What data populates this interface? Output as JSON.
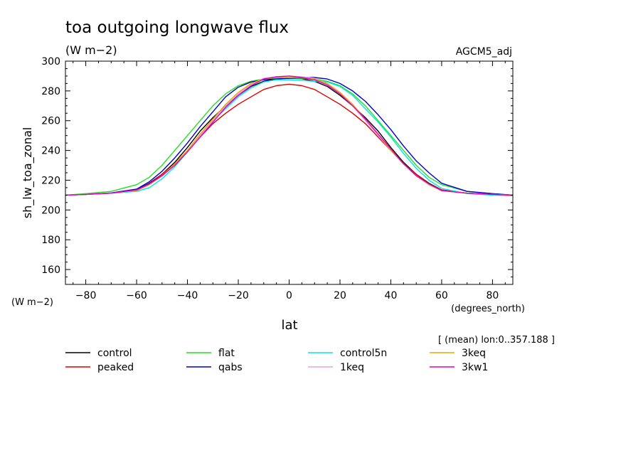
{
  "chart_data": {
    "type": "line",
    "title": "toa outgoing longwave flux",
    "units_label": "(W m−2)",
    "run_label": "AGCM5_adj",
    "ylabel": "sh_lw_toa_zonal",
    "y_units": "(W m−2)",
    "xlabel": "lat",
    "x_units": "(degrees_north)",
    "mean_note": "[ (mean) lon:0..357.188 ]",
    "xlim": [
      -88,
      88
    ],
    "ylim": [
      150,
      300
    ],
    "xticks": [
      -80,
      -60,
      -40,
      -20,
      0,
      20,
      40,
      60,
      80
    ],
    "xtick_labels": [
      "−80",
      "−60",
      "−40",
      "−20",
      "0",
      "20",
      "40",
      "60",
      "80"
    ],
    "yticks": [
      160,
      180,
      200,
      220,
      240,
      260,
      280,
      300
    ],
    "ytick_labels": [
      "160",
      "180",
      "200",
      "220",
      "240",
      "260",
      "280",
      "300"
    ],
    "grid": false,
    "legend_position": "bottom",
    "x": [
      -88,
      -80,
      -70,
      -60,
      -55,
      -50,
      -45,
      -40,
      -35,
      -30,
      -25,
      -20,
      -15,
      -10,
      -5,
      0,
      5,
      10,
      15,
      20,
      25,
      30,
      35,
      40,
      45,
      50,
      55,
      60,
      70,
      80,
      88
    ],
    "series": [
      {
        "name": "control",
        "color": "#000000",
        "values": [
          210,
          210.5,
          211.3,
          213.5,
          218,
          224,
          232,
          242,
          253,
          262,
          270,
          277,
          283,
          286.5,
          288.2,
          288.5,
          288.2,
          286.5,
          283,
          277,
          270,
          262,
          253,
          242,
          232,
          224,
          218,
          213.5,
          211.3,
          210.5,
          210
        ]
      },
      {
        "name": "peaked",
        "color": "#e00000",
        "values": [
          210,
          210.5,
          211.3,
          213.5,
          217.5,
          224,
          231,
          240,
          249,
          258,
          265,
          271,
          276,
          281,
          283.5,
          284.5,
          283.5,
          281,
          276,
          271,
          265,
          258,
          249,
          240,
          231,
          224,
          217.5,
          213.5,
          211.3,
          210.5,
          210
        ]
      },
      {
        "name": "flat",
        "color": "#22e022",
        "values": [
          210,
          211,
          212.5,
          217,
          222,
          230,
          240,
          250,
          260,
          270,
          278,
          283.5,
          286.5,
          288,
          288.5,
          288.5,
          288.5,
          288,
          286.5,
          283.5,
          278,
          270,
          260,
          250,
          240,
          230,
          222,
          217,
          212.5,
          211,
          210
        ]
      },
      {
        "name": "qabs",
        "color": "#0000c8",
        "values": [
          210,
          210.5,
          211.5,
          214,
          219,
          226,
          235,
          245,
          256,
          266,
          276,
          282.5,
          286,
          287.5,
          288,
          288.5,
          289,
          289,
          288,
          285,
          280,
          273,
          264,
          254,
          243,
          233,
          225,
          218,
          212.5,
          211,
          210
        ]
      },
      {
        "name": "control5n",
        "color": "#00e5e5",
        "values": [
          210,
          210.5,
          211.3,
          212.5,
          215,
          221,
          229,
          239,
          250,
          260,
          268,
          276,
          282,
          286,
          287.5,
          287.5,
          287,
          286.5,
          286,
          283,
          277,
          268,
          259,
          249,
          238,
          228,
          220,
          214.5,
          211,
          210,
          209.5
        ]
      },
      {
        "name": "1keq",
        "color": "#e8a0e0",
        "values": [
          210,
          210.5,
          211.3,
          213,
          217,
          223,
          231,
          240,
          250,
          260,
          270,
          278,
          284.5,
          288.5,
          289.5,
          290,
          289.5,
          288.5,
          284.5,
          278,
          270,
          260,
          250,
          240,
          231,
          223,
          217,
          213,
          211.3,
          210.5,
          210
        ]
      },
      {
        "name": "3keq",
        "color": "#e8a800",
        "values": [
          210,
          210.5,
          211.3,
          213,
          217,
          223,
          231,
          240,
          251,
          261,
          271,
          279,
          285,
          288,
          289,
          289,
          289,
          288,
          285,
          279,
          271,
          261,
          251,
          240,
          231,
          223,
          217,
          213,
          211.3,
          210.5,
          210
        ]
      },
      {
        "name": "3kw1",
        "color": "#e000c8",
        "values": [
          210,
          210.5,
          211.3,
          213.5,
          217.5,
          223,
          230,
          239,
          249,
          259,
          269,
          277,
          283.5,
          288,
          289.5,
          290,
          289,
          287.5,
          284,
          278,
          270,
          261,
          251,
          241,
          231,
          223,
          217.5,
          213,
          211.3,
          210.5,
          210
        ]
      }
    ]
  }
}
